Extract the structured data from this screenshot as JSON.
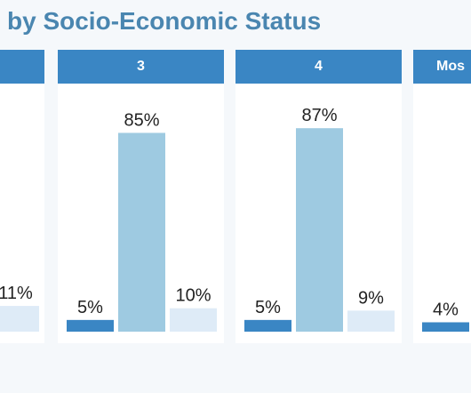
{
  "title": "by Socio-Economic Status",
  "colors": {
    "accent": "#3a86c4",
    "title": "#4a86b0",
    "bar_low": "#3a86c4",
    "bar_mid": "#9ecae1",
    "bar_high": "#deebf7"
  },
  "chart_data": {
    "type": "bar",
    "title": "by Socio-Economic Status",
    "categories": [
      "",
      "3",
      "4",
      "Mos"
    ],
    "series": [
      {
        "values": [
          null,
          5,
          5,
          4
        ]
      },
      {
        "values": [
          null,
          85,
          87,
          null
        ]
      },
      {
        "values": [
          11,
          10,
          9,
          null
        ]
      }
    ],
    "value_suffix": "%",
    "ylim": [
      0,
      100
    ],
    "grid": false
  }
}
